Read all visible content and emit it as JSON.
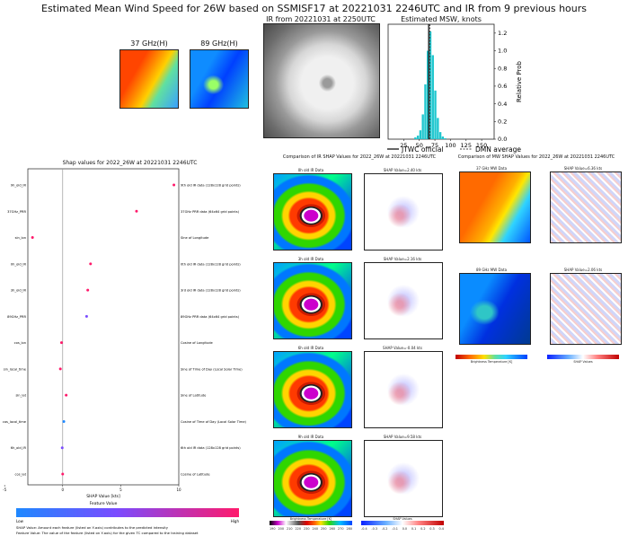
{
  "title": "Estimated Mean Wind Speed for 26W based on SSMISF17 at 20221031 2246UTC and IR from 9 previous hours",
  "top": {
    "label_37": "37 GHz(H)",
    "label_89": "89 GHz(H)",
    "ir_title": "IR from 20221031 at 2250UTC",
    "hist_title": "Estimated MSW, knots",
    "hist_ylabel": "Relative Prob",
    "hist_xticks": [
      "25",
      "50",
      "75",
      "100",
      "125",
      "150"
    ],
    "hist_yticks": [
      "0.0",
      "0.2",
      "0.4",
      "0.6",
      "0.8",
      "1.0",
      "1.2"
    ],
    "legend_jtwc": "JTWC official",
    "legend_dmn": "DMN average"
  },
  "shap": {
    "title": "Shap values for 2022_26W at 20221031 2246UTC",
    "xlabel": "SHAP Value [kts]",
    "xticks": [
      "-5",
      "0",
      "5",
      "10"
    ],
    "features": [
      {
        "name": "9h_old_IR",
        "desc": "9th old IR data (128x128 grid points)"
      },
      {
        "name": "37GHz_PRR",
        "desc": "37GHz PRR data (64x64 grid points)"
      },
      {
        "name": "sin_lon",
        "desc": "Sine of Longitude"
      },
      {
        "name": "0h_old_IR",
        "desc": "0th old IR data (128x128 grid points)"
      },
      {
        "name": "3h_old_IR",
        "desc": "3rd old IR data (128x128 grid points)"
      },
      {
        "name": "89GHz_PRR",
        "desc": "89GHz PRR data (64x64 grid points)"
      },
      {
        "name": "cos_lon",
        "desc": "Cosine of Longitude"
      },
      {
        "name": "sin_local_time",
        "desc": "Sine of Time of Day (Local Solar Time)"
      },
      {
        "name": "sin_lat",
        "desc": "Sine of Latitude"
      },
      {
        "name": "cos_local_time",
        "desc": "Cosine of Time of Day (Local Solar Time)"
      },
      {
        "name": "6h_old_IR",
        "desc": "6th old IR data (128x128 grid points)"
      },
      {
        "name": "cos_lat",
        "desc": "Cosine of Latitude"
      }
    ],
    "feature_value_label": "Feature Value",
    "low": "Low",
    "high": "High",
    "note1": "SHAP Value: Amount each feature (listed on Y-axis) contributes to the predicted intensity",
    "note2": "Feature Value: The value of the feature (listed on Y-axis) for the given TC compared to the training dataset"
  },
  "ir_compare": {
    "title": "Comparison of IR SHAP Values for 2022_26W at 20221031 2246UTC",
    "rows": [
      {
        "left": "0h old IR Data",
        "right": "SHAP Value=2.40 kts"
      },
      {
        "left": "3h old IR Data",
        "right": "SHAP Value=2.16 kts"
      },
      {
        "left": "6h old IR Data",
        "right": "SHAP Value=-0.04 kts"
      },
      {
        "left": "9h old IR Data",
        "right": "SHAP Value=9.58 kts"
      }
    ],
    "cbar_bt": "Brightness Temperature [K]",
    "cbar_shap": "SHAP Values",
    "bt_ticks": [
      "190",
      "200",
      "210",
      "220",
      "230",
      "240",
      "250",
      "260",
      "270",
      "280"
    ],
    "shap_ticks": [
      "-0.4",
      "-0.3",
      "-0.2",
      "-0.1",
      "0.0",
      "0.1",
      "0.2",
      "0.3",
      "0.4"
    ]
  },
  "mw_compare": {
    "title": "Comparison of MW SHAP Values for 2022_26W at 20221031 2246UTC",
    "rows": [
      {
        "left": "37 GHz MW Data",
        "right": "SHAP Value=6.36 kts"
      },
      {
        "left": "89 GHz MW Data",
        "right": "SHAP Value=2.06 kts"
      }
    ],
    "cbar_bt": "Brightness Temperature [K]",
    "cbar_shap": "SHAP Values",
    "bt_ticks": [
      "180",
      "200",
      "220",
      "240",
      "260",
      "280"
    ],
    "shap_ticks": [
      "-0.15",
      "-0.10",
      "-0.05",
      "0.00",
      "0.05",
      "0.10",
      "0.15"
    ]
  },
  "chart_data": [
    {
      "type": "bar",
      "title": "Estimated MSW, knots",
      "ylabel": "Relative Prob",
      "xlim": [
        0,
        170
      ],
      "ylim": [
        0,
        1.3
      ],
      "bins_x": [
        44,
        48,
        52,
        56,
        60,
        64,
        68,
        72,
        76,
        80,
        84,
        88,
        92
      ],
      "values": [
        0.02,
        0.04,
        0.1,
        0.28,
        0.62,
        1.0,
        1.22,
        0.95,
        0.55,
        0.24,
        0.08,
        0.03,
        0.01
      ],
      "jtwc_official": 65,
      "dmn_average": 67,
      "color": "#1fc7cf"
    },
    {
      "type": "scatter",
      "title": "Shap values for 2022_26W at 20221031 2246UTC",
      "xlabel": "SHAP Value [kts]",
      "xlim": [
        -3,
        10
      ],
      "categories": [
        "9h_old_IR",
        "37GHz_PRR",
        "sin_lon",
        "0h_old_IR",
        "3h_old_IR",
        "89GHz_PRR",
        "cos_lon",
        "sin_local_time",
        "sin_lat",
        "cos_local_time",
        "6h_old_IR",
        "cos_lat"
      ],
      "values": [
        9.58,
        6.36,
        -2.6,
        2.4,
        2.16,
        2.06,
        -0.1,
        -0.2,
        0.3,
        0.1,
        -0.04,
        0.0
      ],
      "colors": [
        "#ff1a6b",
        "#ff1a6b",
        "#ff1a6b",
        "#ff1a6b",
        "#ff1a6b",
        "#7a4bff",
        "#ff1a6b",
        "#ff1a6b",
        "#ff1a6b",
        "#1e88ff",
        "#7a4bff",
        "#ff1a6b"
      ]
    }
  ]
}
